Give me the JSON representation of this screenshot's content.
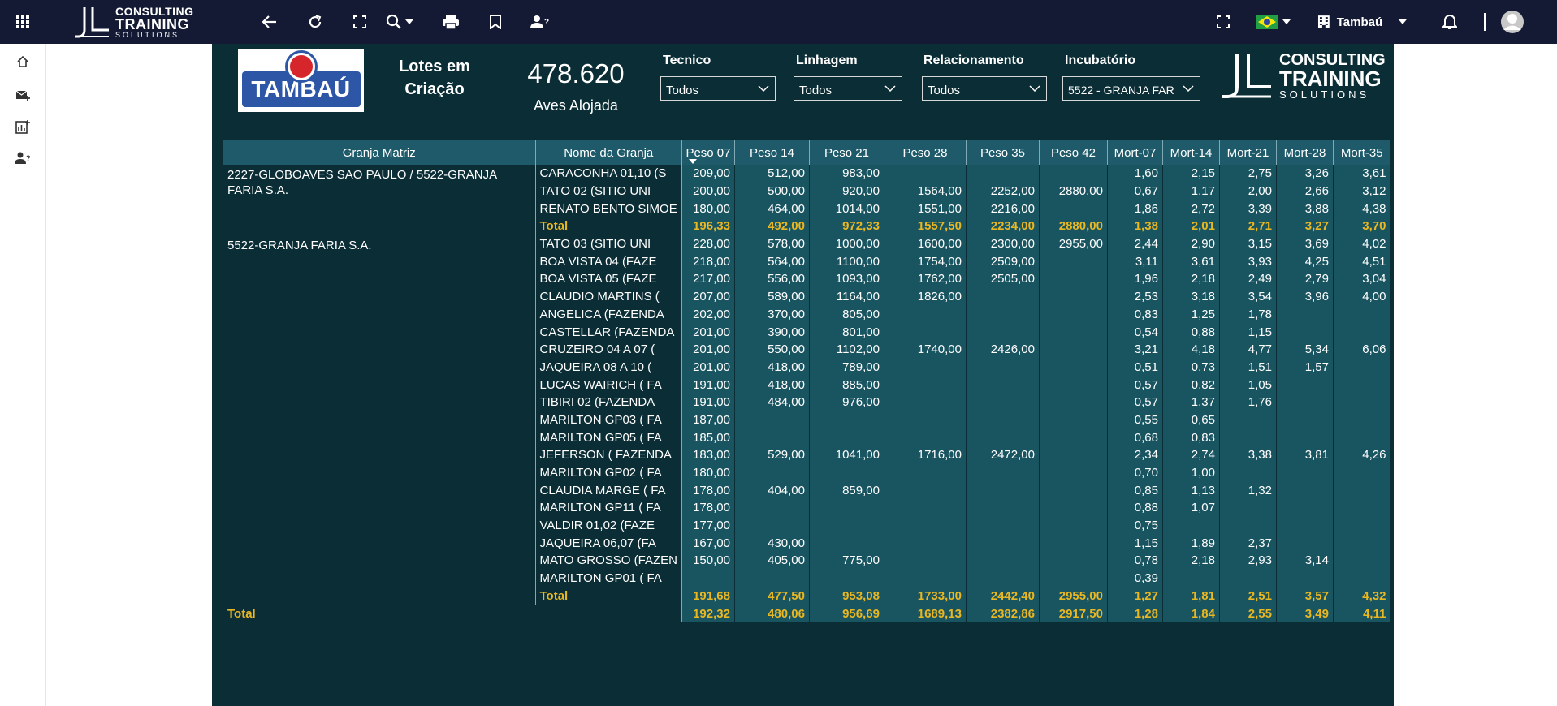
{
  "topbar": {
    "brand": {
      "l1": "CONSULTING",
      "l2": "TRAINING",
      "l3": "SOLUTIONS"
    },
    "flag": "brazil-flag",
    "org_label": "Tambaú"
  },
  "report": {
    "logo_text": "TAMBAÚ",
    "kpi_label": "Lotes em Criação",
    "kpi_value": "478.620",
    "kpi_sub": "Aves Alojada",
    "filters": [
      {
        "label": "Tecnico",
        "value": "Todos"
      },
      {
        "label": "Linhagem",
        "value": "Todos"
      },
      {
        "label": "Relacionamento",
        "value": "Todos"
      },
      {
        "label": "Incubatório",
        "value": "5522 - GRANJA FAR"
      }
    ],
    "brand": {
      "l1": "CONSULTING",
      "l2": "TRAINING",
      "l3": "SOLUTIONS"
    }
  },
  "table": {
    "headers": [
      "Granja Matriz",
      "Nome da Granja",
      "Peso 07",
      "Peso 14",
      "Peso 21",
      "Peso 28",
      "Peso 35",
      "Peso 42",
      "Mort-07",
      "Mort-14",
      "Mort-21",
      "Mort-28",
      "Mort-35"
    ],
    "groups": [
      {
        "matriz": "2227-GLOBOAVES SAO PAULO / 5522-GRANJA FARIA S.A.",
        "rows": [
          [
            "CARACONHA 01,10 (S",
            "209,00",
            "512,00",
            "983,00",
            "",
            "",
            "",
            "1,60",
            "2,15",
            "2,75",
            "3,26",
            "3,61"
          ],
          [
            "TATO 02 (SITIO UNI",
            "200,00",
            "500,00",
            "920,00",
            "1564,00",
            "2252,00",
            "2880,00",
            "0,67",
            "1,17",
            "2,00",
            "2,66",
            "3,12"
          ],
          [
            "RENATO BENTO SIMOE",
            "180,00",
            "464,00",
            "1014,00",
            "1551,00",
            "2216,00",
            "",
            "1,86",
            "2,72",
            "3,39",
            "3,88",
            "4,38"
          ]
        ],
        "total": [
          "Total",
          "196,33",
          "492,00",
          "972,33",
          "1557,50",
          "2234,00",
          "2880,00",
          "1,38",
          "2,01",
          "2,71",
          "3,27",
          "3,70"
        ]
      },
      {
        "matriz": "5522-GRANJA FARIA S.A.",
        "rows": [
          [
            "TATO 03 (SITIO UNI",
            "228,00",
            "578,00",
            "1000,00",
            "1600,00",
            "2300,00",
            "2955,00",
            "2,44",
            "2,90",
            "3,15",
            "3,69",
            "4,02"
          ],
          [
            "BOA VISTA 04 (FAZE",
            "218,00",
            "564,00",
            "1100,00",
            "1754,00",
            "2509,00",
            "",
            "3,11",
            "3,61",
            "3,93",
            "4,25",
            "4,51"
          ],
          [
            "BOA VISTA 05 (FAZE",
            "217,00",
            "556,00",
            "1093,00",
            "1762,00",
            "2505,00",
            "",
            "1,96",
            "2,18",
            "2,49",
            "2,79",
            "3,04"
          ],
          [
            "CLAUDIO MARTINS (",
            "207,00",
            "589,00",
            "1164,00",
            "1826,00",
            "",
            "",
            "2,53",
            "3,18",
            "3,54",
            "3,96",
            "4,00"
          ],
          [
            "ANGELICA (FAZENDA",
            "202,00",
            "370,00",
            "805,00",
            "",
            "",
            "",
            "0,83",
            "1,25",
            "1,78",
            "",
            ""
          ],
          [
            "CASTELLAR (FAZENDA",
            "201,00",
            "390,00",
            "801,00",
            "",
            "",
            "",
            "0,54",
            "0,88",
            "1,15",
            "",
            ""
          ],
          [
            "CRUZEIRO 04 A 07 (",
            "201,00",
            "550,00",
            "1102,00",
            "1740,00",
            "2426,00",
            "",
            "3,21",
            "4,18",
            "4,77",
            "5,34",
            "6,06"
          ],
          [
            "JAQUEIRA 08 A 10 (",
            "201,00",
            "418,00",
            "789,00",
            "",
            "",
            "",
            "0,51",
            "0,73",
            "1,51",
            "1,57",
            ""
          ],
          [
            "LUCAS WAIRICH ( FA",
            "191,00",
            "418,00",
            "885,00",
            "",
            "",
            "",
            "0,57",
            "0,82",
            "1,05",
            "",
            ""
          ],
          [
            "TIBIRI 02 (FAZENDA",
            "191,00",
            "484,00",
            "976,00",
            "",
            "",
            "",
            "0,57",
            "1,37",
            "1,76",
            "",
            ""
          ],
          [
            "MARILTON GP03 ( FA",
            "187,00",
            "",
            "",
            "",
            "",
            "",
            "0,55",
            "0,65",
            "",
            "",
            ""
          ],
          [
            "MARILTON GP05 ( FA",
            "185,00",
            "",
            "",
            "",
            "",
            "",
            "0,68",
            "0,83",
            "",
            "",
            ""
          ],
          [
            "JEFERSON ( FAZENDA",
            "183,00",
            "529,00",
            "1041,00",
            "1716,00",
            "2472,00",
            "",
            "2,34",
            "2,74",
            "3,38",
            "3,81",
            "4,26"
          ],
          [
            "MARILTON GP02 ( FA",
            "180,00",
            "",
            "",
            "",
            "",
            "",
            "0,70",
            "1,00",
            "",
            "",
            ""
          ],
          [
            "CLAUDIA MARGE ( FA",
            "178,00",
            "404,00",
            "859,00",
            "",
            "",
            "",
            "0,85",
            "1,13",
            "1,32",
            "",
            ""
          ],
          [
            "MARILTON GP11 ( FA",
            "178,00",
            "",
            "",
            "",
            "",
            "",
            "0,88",
            "1,07",
            "",
            "",
            ""
          ],
          [
            "VALDIR 01,02 (FAZE",
            "177,00",
            "",
            "",
            "",
            "",
            "",
            "0,75",
            "",
            "",
            "",
            ""
          ],
          [
            "JAQUEIRA 06,07 (FA",
            "167,00",
            "430,00",
            "",
            "",
            "",
            "",
            "1,15",
            "1,89",
            "2,37",
            "",
            ""
          ],
          [
            "MATO GROSSO (FAZEN",
            "150,00",
            "405,00",
            "775,00",
            "",
            "",
            "",
            "0,78",
            "2,18",
            "2,93",
            "3,14",
            ""
          ],
          [
            "MARILTON GP01 ( FA",
            "",
            "",
            "",
            "",
            "",
            "",
            "0,39",
            "",
            "",
            "",
            ""
          ]
        ],
        "total": [
          "Total",
          "191,68",
          "477,50",
          "953,08",
          "1733,00",
          "2442,40",
          "2955,00",
          "1,27",
          "1,81",
          "2,51",
          "3,57",
          "4,32"
        ]
      }
    ],
    "grand_total": [
      "Total",
      "192,32",
      "480,06",
      "956,69",
      "1689,13",
      "2382,86",
      "2917,50",
      "1,28",
      "1,84",
      "2,55",
      "3,49",
      "4,11"
    ]
  }
}
